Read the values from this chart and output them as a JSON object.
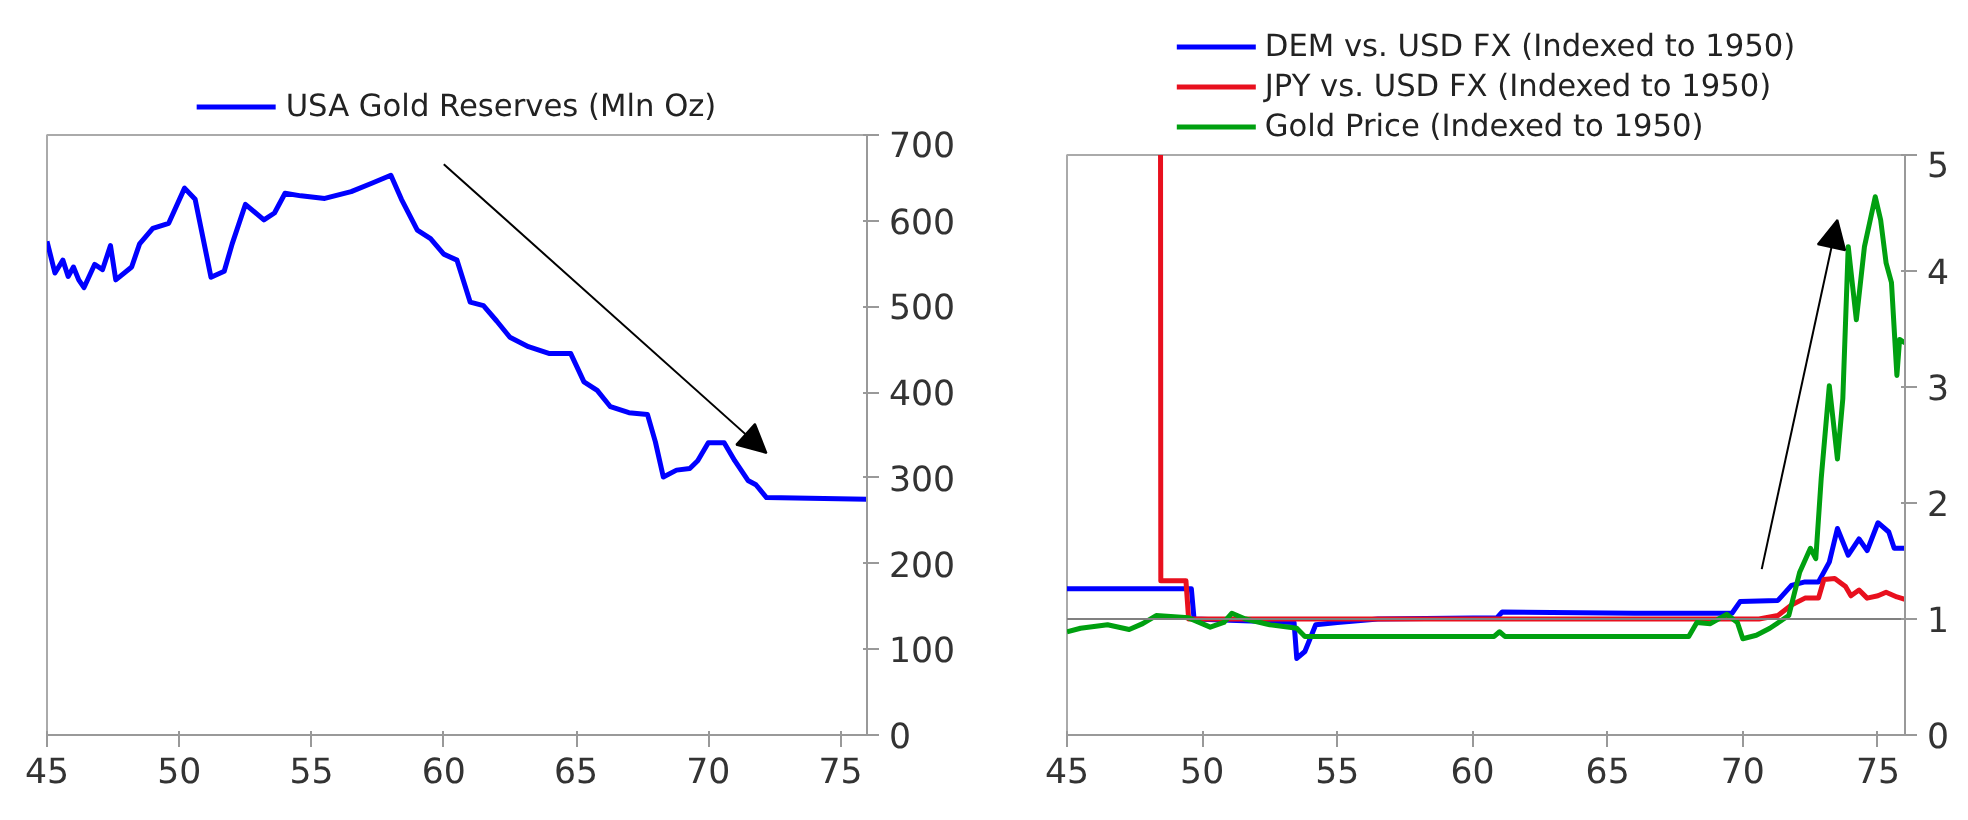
{
  "chart_data": [
    {
      "type": "line",
      "xlim": [
        45,
        76
      ],
      "xticks": [
        45,
        50,
        55,
        60,
        65,
        70,
        75
      ],
      "ylim": [
        0,
        700
      ],
      "yticks": [
        0,
        100,
        200,
        300,
        400,
        500,
        600,
        700
      ],
      "grid": false,
      "legend": "top",
      "series": [
        {
          "name": "USA Gold Reserves (Mln Oz)",
          "color": "#0000ff",
          "x": [
            45.0,
            45.3,
            45.6,
            45.8,
            46.0,
            46.2,
            46.4,
            46.8,
            47.1,
            47.4,
            47.6,
            48.2,
            48.5,
            49.0,
            49.6,
            50.2,
            50.6,
            51.2,
            51.7,
            52.0,
            52.5,
            53.2,
            53.6,
            54.0,
            54.6,
            55.5,
            56.5,
            57.3,
            58.0,
            58.4,
            59.0,
            59.5,
            60.0,
            60.5,
            61.0,
            61.5,
            62.0,
            62.5,
            63.2,
            64.0,
            64.8,
            65.3,
            65.8,
            66.3,
            67.0,
            67.7,
            68.0,
            68.3,
            68.8,
            69.3,
            69.6,
            70.0,
            70.6,
            71.0,
            71.5,
            71.8,
            72.2,
            76.0
          ],
          "values": [
            576,
            539,
            554,
            535,
            546,
            531,
            522,
            549,
            543,
            571,
            531,
            546,
            573,
            591,
            597,
            638,
            625,
            534,
            541,
            573,
            619,
            601,
            609,
            632,
            629,
            626,
            634,
            644,
            653,
            625,
            589,
            579,
            561,
            554,
            505,
            501,
            483,
            464,
            453,
            445,
            445,
            412,
            402,
            383,
            376,
            374,
            342,
            301,
            309,
            311,
            320,
            341,
            341,
            320,
            297,
            292,
            277,
            275
          ]
        }
      ]
    },
    {
      "type": "line",
      "xlim": [
        45,
        76
      ],
      "xticks": [
        45,
        50,
        55,
        60,
        65,
        70,
        75
      ],
      "ylim": [
        0,
        5
      ],
      "yticks": [
        0,
        1,
        2,
        3,
        4,
        5
      ],
      "grid": false,
      "legend": "top",
      "ref_lines": [
        {
          "axis": "y",
          "value": 1,
          "color": "#808080"
        }
      ],
      "series": [
        {
          "name": "DEM vs. USD FX (Indexed to 1950)",
          "color": "#0000ff",
          "x": [
            45,
            49.6,
            49.7,
            53.4,
            53.5,
            53.8,
            54.2,
            55,
            56.5,
            60.9,
            61.1,
            66,
            69.6,
            69.9,
            71.3,
            71.8,
            72.3,
            72.8,
            73.2,
            73.5,
            73.9,
            74.3,
            74.6,
            75.0,
            75.4,
            75.6,
            76
          ],
          "values": [
            1.26,
            1.26,
            1.0,
            0.97,
            0.66,
            0.72,
            0.95,
            0.97,
            1.0,
            1.01,
            1.06,
            1.05,
            1.05,
            1.15,
            1.16,
            1.29,
            1.32,
            1.32,
            1.49,
            1.78,
            1.55,
            1.69,
            1.59,
            1.83,
            1.75,
            1.61,
            1.61
          ]
        },
        {
          "name": "JPY vs. USD FX (Indexed to 1950)",
          "color": "#e8101e",
          "x": [
            48.46,
            48.47,
            49.4,
            49.5,
            70.6,
            71.3,
            71.8,
            72.3,
            72.8,
            73.0,
            73.4,
            73.8,
            74.0,
            74.3,
            74.6,
            75.0,
            75.3,
            75.7,
            76
          ],
          "values": [
            5,
            1.33,
            1.33,
            1.0,
            1.0,
            1.03,
            1.12,
            1.18,
            1.18,
            1.34,
            1.35,
            1.28,
            1.2,
            1.25,
            1.18,
            1.2,
            1.23,
            1.19,
            1.17
          ]
        },
        {
          "name": "Gold Price (Indexed to 1950)",
          "color": "#00a010",
          "x": [
            45,
            45.5,
            46.5,
            47.3,
            47.8,
            48.3,
            49.5,
            50.3,
            50.8,
            51.1,
            51.6,
            52.5,
            53.5,
            53.8,
            55,
            60.8,
            61.0,
            61.2,
            68.0,
            68.3,
            68.8,
            69.4,
            69.8,
            70.0,
            70.5,
            71.0,
            71.7,
            72.1,
            72.5,
            72.7,
            72.9,
            73.2,
            73.5,
            73.7,
            73.9,
            74.2,
            74.5,
            74.9,
            75.1,
            75.3,
            75.5,
            75.7,
            75.8,
            76
          ],
          "values": [
            0.89,
            0.92,
            0.95,
            0.91,
            0.96,
            1.03,
            1.01,
            0.93,
            0.97,
            1.05,
            1.0,
            0.95,
            0.92,
            0.85,
            0.85,
            0.85,
            0.89,
            0.85,
            0.85,
            0.97,
            0.96,
            1.04,
            0.97,
            0.83,
            0.86,
            0.92,
            1.03,
            1.4,
            1.61,
            1.52,
            2.21,
            3.01,
            2.38,
            2.9,
            4.21,
            3.58,
            4.21,
            4.64,
            4.44,
            4.07,
            3.9,
            3.1,
            3.41,
            3.38
          ]
        }
      ]
    }
  ]
}
